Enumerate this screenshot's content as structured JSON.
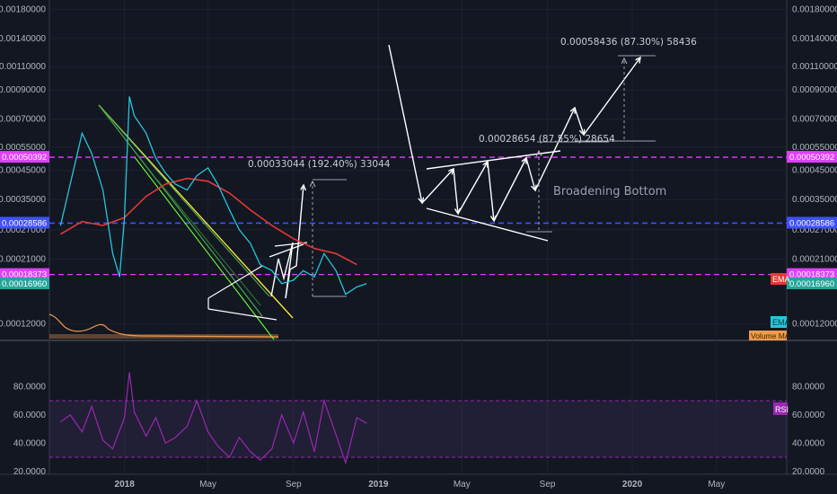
{
  "chart_data": [
    {
      "type": "line",
      "panel": "price",
      "y_axis_scale": "log",
      "ylim": [
        0.000105,
        0.00195
      ],
      "y_ticks": [
        "0.00180000",
        "0.00140000",
        "0.00110000",
        "0.00090000",
        "0.00070000",
        "0.00055000",
        "0.00045000",
        "0.00035000",
        "0.00027000",
        "0.00021000",
        "0.00012000"
      ],
      "x_ticks": [
        "2018",
        "May",
        "Sep",
        "2019",
        "May",
        "Sep",
        "2020",
        "May"
      ],
      "series": [
        {
          "name": "",
          "color": "#26c6da",
          "values": [
            [
              "2017-10-01",
              0.00028
            ],
            [
              "2017-10-15",
              0.0004
            ],
            [
              "2017-11-01",
              0.00062
            ],
            [
              "2017-11-15",
              0.00052
            ],
            [
              "2017-12-01",
              0.00038
            ],
            [
              "2017-12-15",
              0.00022
            ],
            [
              "2017-12-25",
              0.00018
            ],
            [
              "2018-01-01",
              0.0003
            ],
            [
              "2018-01-08",
              0.00085
            ],
            [
              "2018-01-15",
              0.00072
            ],
            [
              "2018-02-01",
              0.00062
            ],
            [
              "2018-02-15",
              0.0005
            ],
            [
              "2018-03-01",
              0.00044
            ],
            [
              "2018-03-15",
              0.0004
            ],
            [
              "2018-04-01",
              0.00038
            ],
            [
              "2018-04-15",
              0.00043
            ],
            [
              "2018-05-01",
              0.00046
            ],
            [
              "2018-05-15",
              0.0004
            ],
            [
              "2018-06-01",
              0.00032
            ],
            [
              "2018-06-15",
              0.00027
            ],
            [
              "2018-07-01",
              0.00024
            ],
            [
              "2018-07-15",
              0.0002
            ],
            [
              "2018-08-01",
              0.00019
            ],
            [
              "2018-08-15",
              0.00017
            ],
            [
              "2018-09-01",
              0.000175
            ],
            [
              "2018-09-15",
              0.00019
            ],
            [
              "2018-10-01",
              0.00018
            ],
            [
              "2018-10-15",
              0.00022
            ],
            [
              "2018-11-01",
              0.00019
            ],
            [
              "2018-11-15",
              0.000155
            ],
            [
              "2018-12-01",
              0.000165
            ],
            [
              "2018-12-15",
              0.00017
            ]
          ]
        },
        {
          "name": "EMA",
          "color": "#e53935",
          "values": [
            [
              "2017-10-01",
              0.00026
            ],
            [
              "2017-11-01",
              0.00029
            ],
            [
              "2017-12-01",
              0.00028
            ],
            [
              "2018-01-01",
              0.0003
            ],
            [
              "2018-02-01",
              0.00036
            ],
            [
              "2018-03-01",
              0.0004
            ],
            [
              "2018-04-01",
              0.00042
            ],
            [
              "2018-05-01",
              0.00041
            ],
            [
              "2018-06-01",
              0.00037
            ],
            [
              "2018-07-01",
              0.00032
            ],
            [
              "2018-08-01",
              0.00028
            ],
            [
              "2018-09-01",
              0.00025
            ],
            [
              "2018-10-01",
              0.00023
            ],
            [
              "2018-11-01",
              0.00022
            ],
            [
              "2018-12-01",
              0.0002
            ]
          ]
        }
      ],
      "horizontal_levels": [
        {
          "value": 0.00050392,
          "label": "0.00050392",
          "color": "#e040fb",
          "style": "dashed"
        },
        {
          "value": 0.00028586,
          "label": "0.00028586",
          "color": "#3f51ff",
          "style": "dashed"
        },
        {
          "value": 0.00018373,
          "label": "0.00018373",
          "color": "#e040fb",
          "style": "dashed"
        },
        {
          "value": 0.0001696,
          "label": "0.00016960",
          "color": "#26a69a",
          "style": "marker"
        }
      ],
      "legend_tags": [
        {
          "label": "EMA",
          "color": "#e53935"
        },
        {
          "label": "EMA",
          "color": "#26c6da"
        },
        {
          "label": "Volume MA",
          "color": "#ef9a4a"
        }
      ],
      "annotations": [
        {
          "text": "0.00033044 (192.40%) 33044"
        },
        {
          "text": "0.00028654 (87.55%) 28654"
        },
        {
          "text": "0.00058436 (87.30%) 58436"
        },
        {
          "text": "Broadening Bottom"
        }
      ]
    },
    {
      "type": "line",
      "panel": "RSI",
      "ylim": [
        18,
        112
      ],
      "y_ticks": [
        "80.0000",
        "60.0000",
        "40.0000",
        "20.0000"
      ],
      "upper_band": 70,
      "lower_band": 30,
      "band_fill": "#7e57c2",
      "series": [
        {
          "name": "RSI",
          "color": "#9c27b0",
          "values": [
            [
              "2017-10-01",
              55
            ],
            [
              "2017-10-15",
              60
            ],
            [
              "2017-11-01",
              48
            ],
            [
              "2017-11-15",
              66
            ],
            [
              "2017-12-01",
              42
            ],
            [
              "2017-12-15",
              36
            ],
            [
              "2018-01-01",
              58
            ],
            [
              "2018-01-08",
              90
            ],
            [
              "2018-01-15",
              62
            ],
            [
              "2018-02-01",
              45
            ],
            [
              "2018-02-15",
              58
            ],
            [
              "2018-03-01",
              40
            ],
            [
              "2018-03-15",
              44
            ],
            [
              "2018-04-01",
              52
            ],
            [
              "2018-04-15",
              70
            ],
            [
              "2018-05-01",
              48
            ],
            [
              "2018-05-15",
              38
            ],
            [
              "2018-06-01",
              30
            ],
            [
              "2018-06-15",
              44
            ],
            [
              "2018-07-01",
              34
            ],
            [
              "2018-07-15",
              28
            ],
            [
              "2018-08-01",
              36
            ],
            [
              "2018-08-15",
              60
            ],
            [
              "2018-09-01",
              40
            ],
            [
              "2018-09-15",
              62
            ],
            [
              "2018-10-01",
              34
            ],
            [
              "2018-10-15",
              70
            ],
            [
              "2018-11-01",
              46
            ],
            [
              "2018-11-15",
              26
            ],
            [
              "2018-12-01",
              58
            ],
            [
              "2018-12-15",
              54
            ]
          ]
        }
      ]
    }
  ]
}
